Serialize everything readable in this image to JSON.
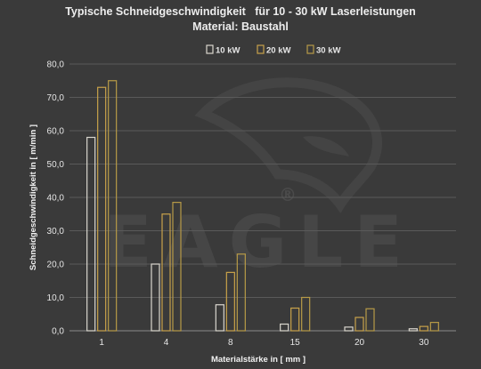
{
  "chart_data": {
    "type": "bar",
    "title": "Typische Schneidgeschwindigkeit   für 10 - 30 kW Laserleistungen",
    "subtitle": "Material: Baustahl",
    "xlabel": "Materialstärke in [ mm ]",
    "ylabel": "Schneidgeschwindigkeit in  [ m/min ]",
    "ylim": [
      0,
      80
    ],
    "yticks": [
      "0,0",
      "10,0",
      "20,0",
      "30,0",
      "40,0",
      "50,0",
      "60,0",
      "70,0",
      "80,0"
    ],
    "categories": [
      "1",
      "4",
      "8",
      "15",
      "20",
      "30"
    ],
    "series": [
      {
        "name": "10 kW",
        "color": "#d9d6ce",
        "values": [
          58,
          20,
          7.8,
          2,
          1.1,
          0.6
        ]
      },
      {
        "name": "20 kW",
        "color": "#c8a24a",
        "values": [
          73,
          35,
          17.5,
          6.8,
          4,
          1.3
        ]
      },
      {
        "name": "30 kW",
        "color": "#b79a47",
        "values": [
          75,
          38.5,
          23,
          10,
          6.6,
          2.5
        ]
      }
    ],
    "grid": true,
    "legend_position": "top-center"
  },
  "watermark": {
    "text": "EAGLE",
    "mark": "®"
  },
  "colors": {
    "background": "#3a3a3a",
    "grid": "#5a5a5a",
    "text": "#e6e6e6"
  }
}
